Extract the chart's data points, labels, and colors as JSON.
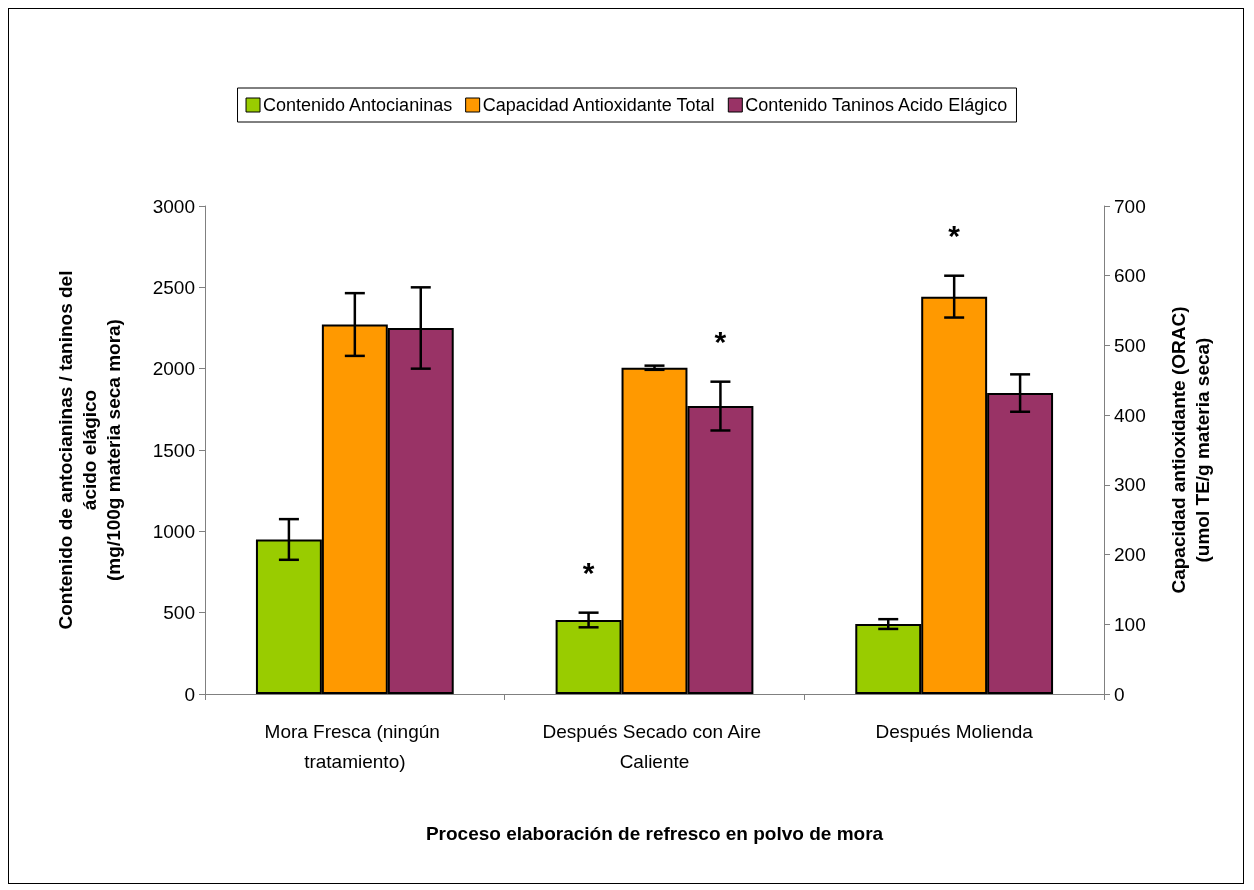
{
  "chart_data": {
    "type": "bar",
    "categories": [
      "Mora Fresca (ningún tratamiento)",
      "Después Secado con Aire Caliente",
      "Después Molienda"
    ],
    "series": [
      {
        "name": "Contenido Antocianinas",
        "color": "#99cc00",
        "values": [
          950,
          455,
          430
        ],
        "errors": [
          125,
          45,
          30
        ],
        "value_labels": [
          null,
          "*",
          null
        ]
      },
      {
        "name": "Capacidad Antioxidante Total",
        "color": "#ff9900",
        "axis": "y2",
        "values": [
          530,
          468,
          570
        ],
        "errors": [
          45,
          3,
          30
        ],
        "value_labels": [
          null,
          null,
          "*"
        ]
      },
      {
        "name": "Contenido Taninos Acido Elágico",
        "color": "#993366",
        "values": [
          2250,
          1770,
          1850
        ],
        "errors": [
          250,
          150,
          115
        ],
        "value_labels": [
          null,
          "*",
          null
        ]
      }
    ],
    "xlabel": "Proceso elaboración de refresco en polvo de mora",
    "ylabel": "Contenido de antocianinas / taninos del\nácido elágico\n(mg/100g materia seca mora)",
    "y2label": "Capacidad antioxidante (ORAC)\n(umol TE/g materia seca)",
    "ylim": [
      0,
      3000
    ],
    "yticks": [
      0,
      500,
      1000,
      1500,
      2000,
      2500,
      3000
    ],
    "y2lim": [
      0,
      700
    ],
    "y2ticks": [
      0,
      100,
      200,
      300,
      400,
      500,
      600,
      700
    ],
    "grid": false,
    "legend": "top"
  }
}
